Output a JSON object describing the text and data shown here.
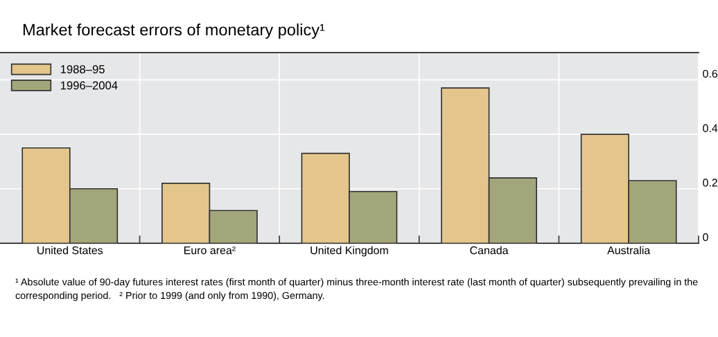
{
  "chart_data": {
    "type": "bar",
    "title": "Market forecast errors of monetary policy¹",
    "categories": [
      "United States",
      "Euro area²",
      "United Kingdom",
      "Canada",
      "Australia"
    ],
    "series": [
      {
        "name": "1988–95",
        "color": "#e4c68c",
        "values": [
          0.35,
          0.22,
          0.33,
          0.57,
          0.4
        ]
      },
      {
        "name": "1996–2004",
        "color": "#a3a67a",
        "values": [
          0.2,
          0.12,
          0.19,
          0.24,
          0.23
        ]
      }
    ],
    "ylim": [
      0,
      0.7
    ],
    "yticks": [
      0,
      0.2,
      0.4,
      0.6
    ],
    "grid": true,
    "legend": "top left",
    "annotations": [
      "¹ Absolute value of 90-day futures interest rates (first month of quarter) minus three-month interest rate (last month of quarter) subsequently prevailing in the corresponding period.",
      "² Prior to 1999 (and only from 1990), Germany."
    ]
  }
}
